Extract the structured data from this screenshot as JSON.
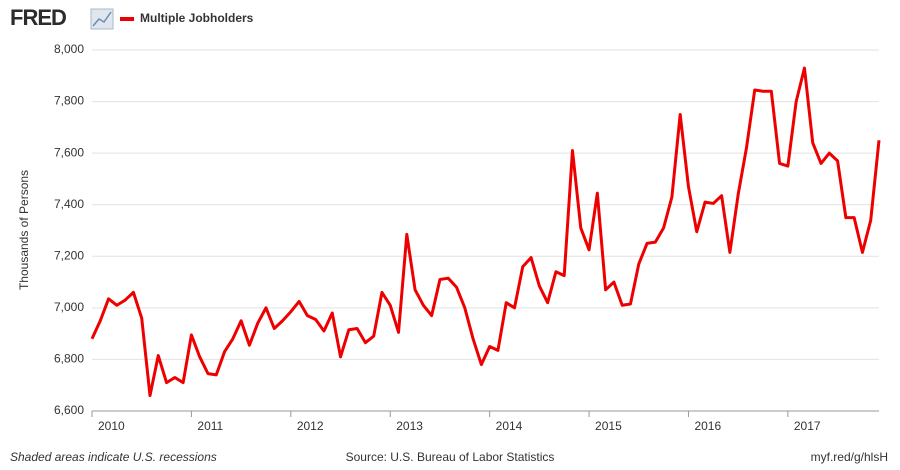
{
  "chart_data": {
    "type": "line",
    "logo": "FRED",
    "ylabel": "Thousands of Persons",
    "note": "Shaded areas indicate U.S. recessions",
    "source": "Source: U.S. Bureau of Labor Statistics",
    "url": "myf.red/g/hlsH",
    "categories": [
      "2010",
      null,
      null,
      null,
      null,
      null,
      null,
      null,
      null,
      null,
      null,
      null,
      "2011",
      null,
      null,
      null,
      null,
      null,
      null,
      null,
      null,
      null,
      null,
      null,
      "2012",
      null,
      null,
      null,
      null,
      null,
      null,
      null,
      null,
      null,
      null,
      null,
      "2013",
      null,
      null,
      null,
      null,
      null,
      null,
      null,
      null,
      null,
      null,
      null,
      "2014",
      null,
      null,
      null,
      null,
      null,
      null,
      null,
      null,
      null,
      null,
      null,
      "2015",
      null,
      null,
      null,
      null,
      null,
      null,
      null,
      null,
      null,
      null,
      null,
      "2016",
      null,
      null,
      null,
      null,
      null,
      null,
      null,
      null,
      null,
      null,
      null,
      "2017",
      null,
      null,
      null,
      null,
      null,
      null,
      null,
      null,
      null,
      null,
      null
    ],
    "series": [
      {
        "name": "Multiple Jobholders",
        "color": "#ee0000",
        "values": [
          6880,
          6950,
          7035,
          7010,
          7030,
          7060,
          6960,
          6660,
          6815,
          6710,
          6730,
          6710,
          6895,
          6810,
          6745,
          6740,
          6830,
          6880,
          6950,
          6855,
          6940,
          7000,
          6920,
          6950,
          6985,
          7025,
          6970,
          6955,
          6910,
          6980,
          6810,
          6915,
          6920,
          6865,
          6890,
          7060,
          7010,
          6905,
          7285,
          7070,
          7010,
          6970,
          7110,
          7115,
          7080,
          7000,
          6880,
          6780,
          6850,
          6835,
          7020,
          7000,
          7160,
          7195,
          7085,
          7020,
          7140,
          7125,
          7610,
          7310,
          7225,
          7445,
          7070,
          7100,
          7010,
          7015,
          7170,
          7250,
          7255,
          7310,
          7430,
          7750,
          7470,
          7295,
          7410,
          7405,
          7435,
          7215,
          7440,
          7620,
          7845,
          7840,
          7840,
          7560,
          7550,
          7800,
          7930,
          7640,
          7560,
          7600,
          7570,
          7350,
          7350,
          7215,
          7340,
          7650
        ]
      }
    ],
    "ylim": [
      6600,
      8000
    ],
    "yticks": [
      {
        "value": 6600,
        "label": "6,600"
      },
      {
        "value": 6800,
        "label": "6,800"
      },
      {
        "value": 7000,
        "label": "7,000"
      },
      {
        "value": 7200,
        "label": "7,200"
      },
      {
        "value": 7400,
        "label": "7,400"
      },
      {
        "value": 7600,
        "label": "7,600"
      },
      {
        "value": 7800,
        "label": "7,800"
      },
      {
        "value": 8000,
        "label": "8,000"
      }
    ],
    "grid": true
  }
}
